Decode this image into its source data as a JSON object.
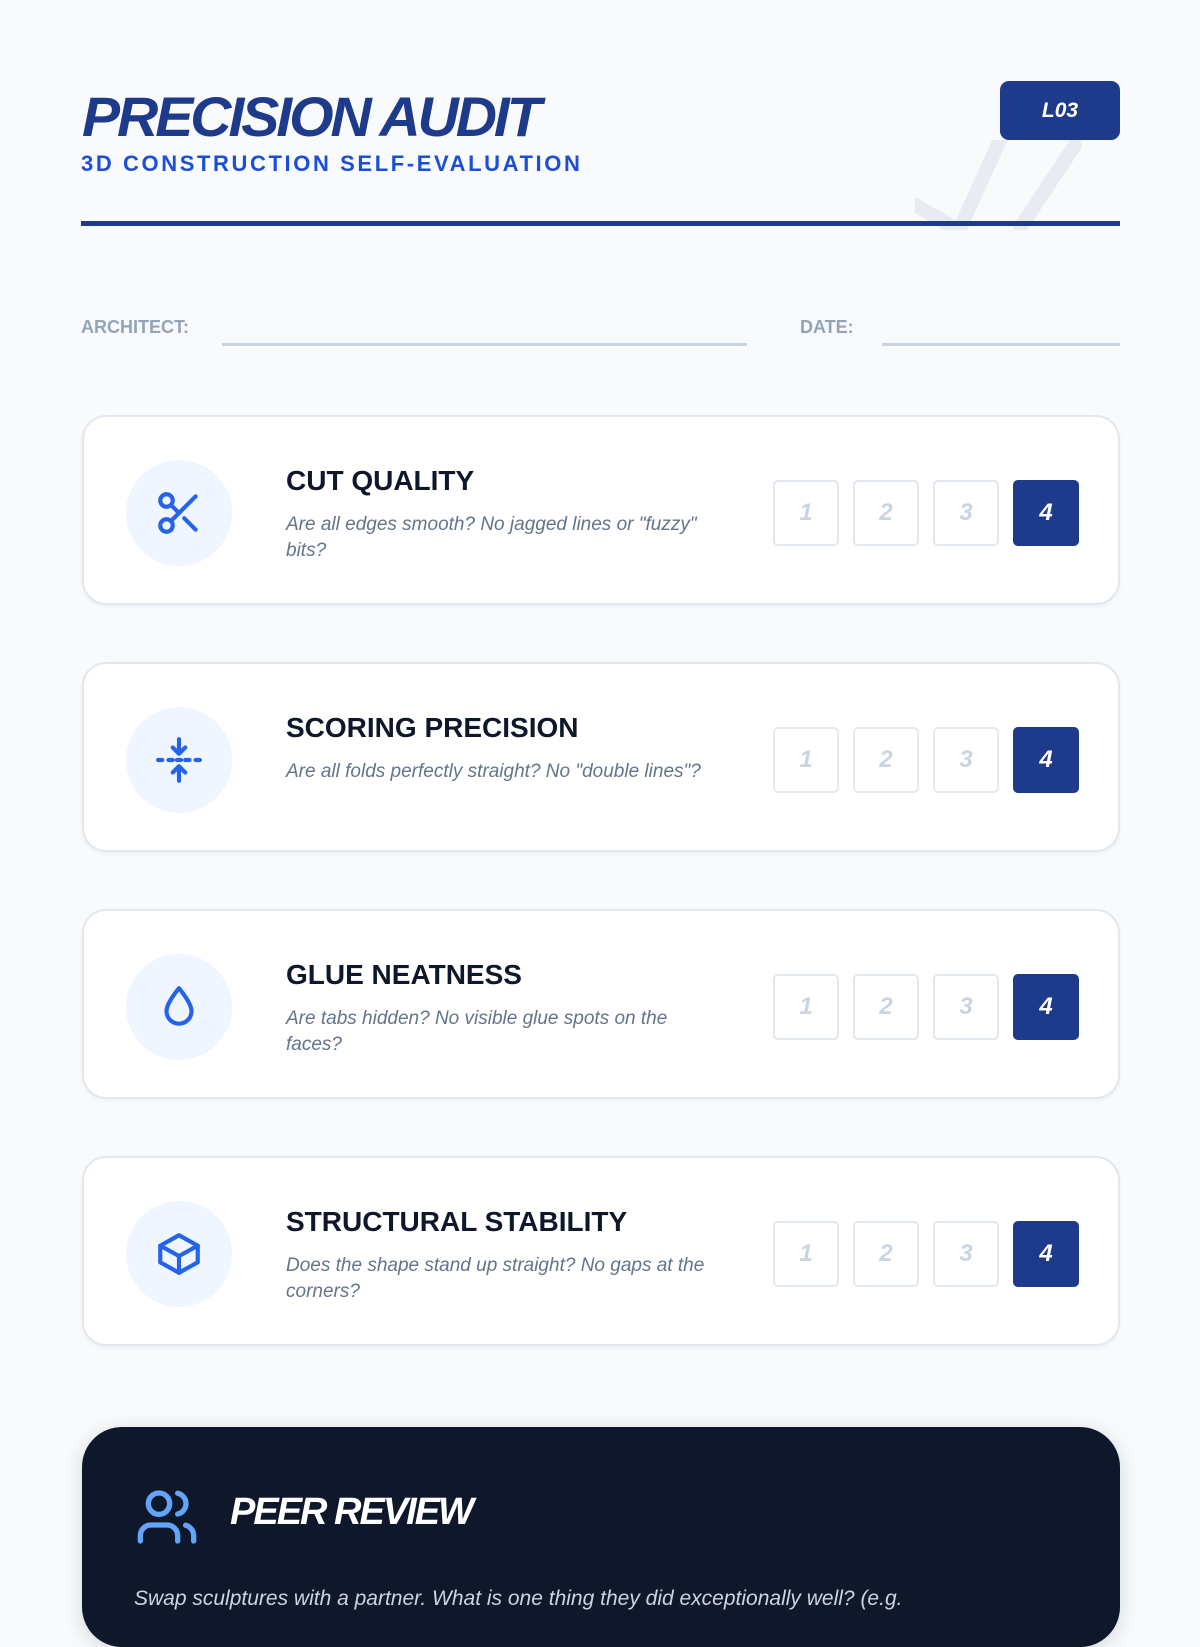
{
  "header": {
    "title": "PRECISION AUDIT",
    "subtitle": "3D CONSTRUCTION SELF-EVALUATION",
    "badge": "L03"
  },
  "fields": {
    "architect_label": "ARCHITECT:",
    "architect_value": "",
    "date_label": "DATE:",
    "date_value": ""
  },
  "criteria": [
    {
      "icon": "scissors-icon",
      "title": "CUT QUALITY",
      "description": "Are all edges smooth? No jagged lines or \"fuzzy\" bits?",
      "scale": [
        "1",
        "2",
        "3",
        "4"
      ],
      "selected": 4
    },
    {
      "icon": "fold-compress-icon",
      "title": "SCORING PRECISION",
      "description": "Are all folds perfectly straight? No \"double lines\"?",
      "scale": [
        "1",
        "2",
        "3",
        "4"
      ],
      "selected": 4
    },
    {
      "icon": "droplet-icon",
      "title": "GLUE NEATNESS",
      "description": "Are tabs hidden? No visible glue spots on the faces?",
      "scale": [
        "1",
        "2",
        "3",
        "4"
      ],
      "selected": 4
    },
    {
      "icon": "cube-icon",
      "title": "STRUCTURAL STABILITY",
      "description": "Does the shape stand up straight? No gaps at the corners?",
      "scale": [
        "1",
        "2",
        "3",
        "4"
      ],
      "selected": 4
    }
  ],
  "peer_review": {
    "icon": "users-icon",
    "title": "PEER REVIEW",
    "prompt": "Swap sculptures with a partner. What is one thing they did exceptionally well? (e.g."
  },
  "colors": {
    "primary": "#1e3a8a",
    "accent": "#2563eb",
    "dark": "#0f172a",
    "background": "#f8fafc"
  }
}
